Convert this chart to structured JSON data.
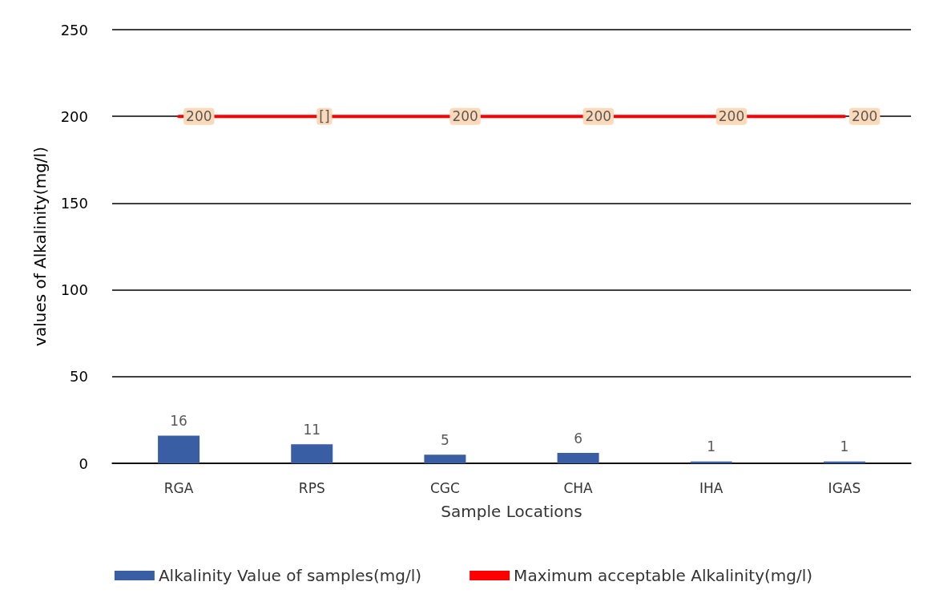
{
  "chart_data": {
    "type": "bar",
    "xlabel": "Sample Locations",
    "ylabel": "values of Alkalinity(mg/l)",
    "categories": [
      "RGA",
      "RPS",
      "CGC",
      "CHA",
      "IHA",
      "IGAS"
    ],
    "series": [
      {
        "name": "Alkalinity Value of samples(mg/l)",
        "color": "#3a5ea3",
        "values": [
          16,
          11,
          5,
          6,
          1,
          1
        ],
        "value_labels": [
          "16",
          "11",
          "5",
          "6",
          "1",
          "1"
        ]
      },
      {
        "name": "Maximum acceptable Alkalinity(mg/l)",
        "type": "line",
        "color": "#ff0000",
        "values": [
          200,
          200,
          200,
          200,
          200,
          200
        ],
        "value_labels": [
          "200",
          "[]",
          "200",
          "200",
          "200",
          "200"
        ],
        "marker": "none"
      }
    ],
    "ylim": [
      0,
      250
    ],
    "yticks": [
      0,
      50,
      100,
      150,
      200,
      250
    ],
    "grid": "y",
    "legend": "bottom"
  }
}
